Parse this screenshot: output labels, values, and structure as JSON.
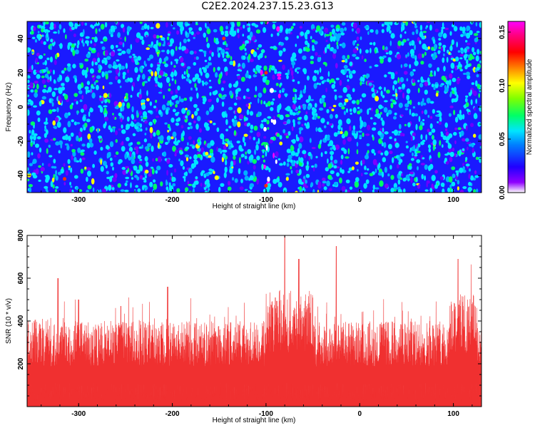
{
  "title": "C2E2.2024.237.15.23.G13",
  "chart_data": [
    {
      "type": "heatmap",
      "xlabel": "Height of straight line (km)",
      "ylabel": "Frequency (Hz)",
      "xlim": [
        -355,
        130
      ],
      "ylim": [
        -50,
        50
      ],
      "xticks": [
        "-300",
        "-200",
        "-100",
        "0",
        "100"
      ],
      "yticks": [
        "-40",
        "-20",
        "0",
        "20",
        "40"
      ],
      "colorbar": {
        "label": "Normalized spectral amplitude",
        "range": [
          0.0,
          0.16
        ],
        "ticks": [
          "0.00",
          "0.05",
          "0.10",
          "0.15"
        ]
      },
      "features": {
        "signal_band_x": [
          -105,
          -85
        ],
        "description_colors": [
          "#6a00ff",
          "#1010ff",
          "#00e5ff",
          "#00ff66",
          "#ffff00",
          "#ff0000",
          "#ff00ff"
        ]
      }
    },
    {
      "type": "area",
      "xlabel": "Height of straight line (km)",
      "ylabel": "SNR (10 * v/v)",
      "xlim": [
        -355,
        130
      ],
      "ylim": [
        0,
        800
      ],
      "xticks": [
        "-300",
        "-200",
        "-100",
        "0",
        "100"
      ],
      "yticks": [
        "200",
        "400",
        "600",
        "800"
      ],
      "color": "#f03030",
      "baseline_level": 250,
      "peaks": [
        {
          "x": -322,
          "y": 600
        },
        {
          "x": -300,
          "y": 500
        },
        {
          "x": -255,
          "y": 470
        },
        {
          "x": -205,
          "y": 560
        },
        {
          "x": -90,
          "y": 510
        },
        {
          "x": -80,
          "y": 800
        },
        {
          "x": -65,
          "y": 690
        },
        {
          "x": -25,
          "y": 750
        },
        {
          "x": 105,
          "y": 690
        }
      ]
    }
  ]
}
